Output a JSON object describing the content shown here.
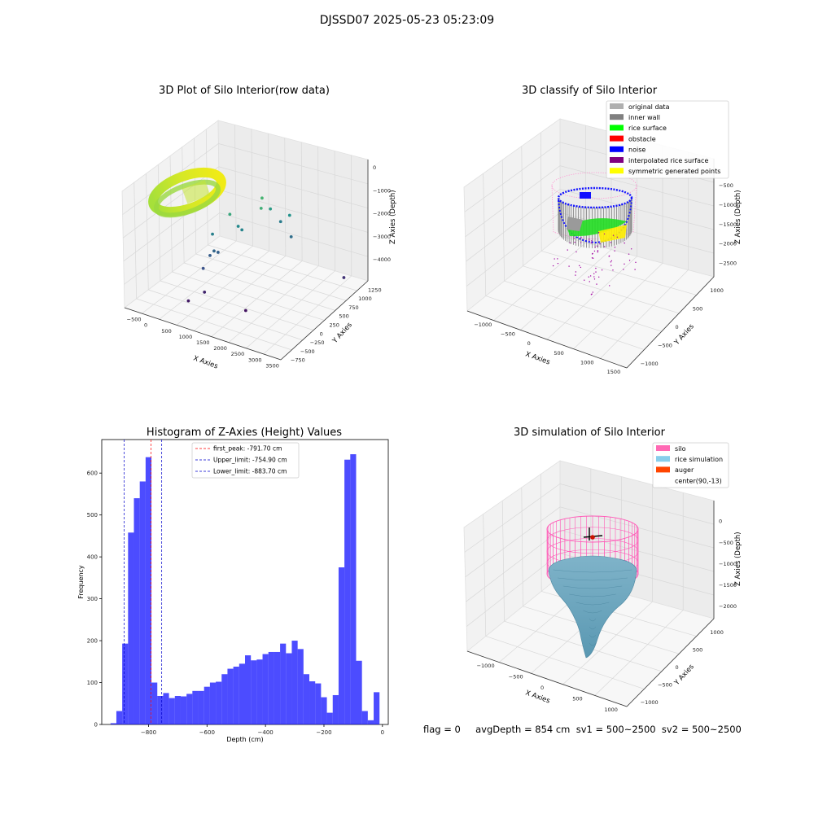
{
  "suptitle": "DJSSD07 2025-05-23 05:23:09",
  "footer": "flag = 0     avgDepth = 854 cm  sv1 = 500~2500  sv2 = 500~2500",
  "chart_data": [
    {
      "type": "scatter",
      "title": "3D Plot of Silo Interior(row data)",
      "xlabel": "X Axies",
      "ylabel": "Y Axies",
      "zlabel": "Z Axies (Depth)",
      "x_ticks": [
        "−500",
        "0",
        "500",
        "1000",
        "1500",
        "2000",
        "2500",
        "3000",
        "3500"
      ],
      "y_ticks": [
        "−750",
        "−500",
        "−250",
        "0",
        "250",
        "500",
        "750",
        "1000",
        "1250"
      ],
      "z_ticks": [
        "0",
        "−1000",
        "−2000",
        "−3000",
        "−4000"
      ],
      "xlim": [
        -600,
        3600
      ],
      "ylim": [
        -800,
        1400
      ],
      "zlim": [
        -4700,
        300
      ],
      "colormap": "viridis",
      "points": [
        {
          "x": 1350,
          "y": 700,
          "z": -1050
        },
        {
          "x": 1500,
          "y": 550,
          "z": -1200
        },
        {
          "x": 950,
          "y": 300,
          "z": -1400
        },
        {
          "x": 1400,
          "y": 850,
          "z": -1700
        },
        {
          "x": 1800,
          "y": 950,
          "z": -1900
        },
        {
          "x": 1000,
          "y": 450,
          "z": -2100
        },
        {
          "x": 1100,
          "y": 450,
          "z": -2200
        },
        {
          "x": 1500,
          "y": 1000,
          "z": -2400
        },
        {
          "x": 1900,
          "y": 900,
          "z": -2700
        },
        {
          "x": 600,
          "y": 200,
          "z": -2300
        },
        {
          "x": 700,
          "y": 150,
          "z": -2900
        },
        {
          "x": 750,
          "y": 200,
          "z": -3000
        },
        {
          "x": 650,
          "y": 100,
          "z": -3050
        },
        {
          "x": 700,
          "y": -100,
          "z": -3300
        },
        {
          "x": 3200,
          "y": 1000,
          "z": -3900
        },
        {
          "x": 850,
          "y": -200,
          "z": -4100
        },
        {
          "x": 650,
          "y": -400,
          "z": -4300
        },
        {
          "x": 1900,
          "y": -150,
          "z": -4400
        }
      ]
    },
    {
      "type": "scatter",
      "title": "3D classify of Silo Interior",
      "xlabel": "X Axies",
      "ylabel": "Y Axies",
      "zlabel": "Z Axies (Depth)",
      "x_ticks": [
        "−1000",
        "−500",
        "0",
        "500",
        "1000",
        "1500"
      ],
      "y_ticks": [
        "−1000",
        "−500",
        "0",
        "500",
        "1000"
      ],
      "z_ticks": [
        "−500",
        "−1000",
        "−1500",
        "−2000",
        "−2500"
      ],
      "legend_position": "top-right",
      "legend": [
        {
          "label": "original data",
          "color": "#b0b0b0"
        },
        {
          "label": "inner wall",
          "color": "#808080"
        },
        {
          "label": "rice surface",
          "color": "#00ff00"
        },
        {
          "label": "obstacle",
          "color": "#ff0000"
        },
        {
          "label": "noise",
          "color": "#0000ff"
        },
        {
          "label": "interpolated rice surface",
          "color": "#800080"
        },
        {
          "label": "symmetric generated points",
          "color": "#ffff00"
        }
      ]
    },
    {
      "type": "bar",
      "title": "Histogram of Z-Axies (Height) Values",
      "xlabel": "Depth (cm)",
      "ylabel": "Frequency",
      "bar_color": "#0000ff",
      "bin_width": 20,
      "xlim": [
        -960,
        20
      ],
      "ylim": [
        0,
        680
      ],
      "x_ticks": [
        -800,
        -600,
        -400,
        -200,
        0
      ],
      "x_tick_labels": [
        "−800",
        "−600",
        "−400",
        "−200",
        "0"
      ],
      "y_ticks": [
        0,
        100,
        200,
        300,
        400,
        500,
        600
      ],
      "bins": [
        {
          "x": -920,
          "value": 3
        },
        {
          "x": -900,
          "value": 32
        },
        {
          "x": -880,
          "value": 193
        },
        {
          "x": -860,
          "value": 458
        },
        {
          "x": -840,
          "value": 540
        },
        {
          "x": -820,
          "value": 580
        },
        {
          "x": -800,
          "value": 638
        },
        {
          "x": -780,
          "value": 100
        },
        {
          "x": -760,
          "value": 68
        },
        {
          "x": -740,
          "value": 75
        },
        {
          "x": -720,
          "value": 63
        },
        {
          "x": -700,
          "value": 68
        },
        {
          "x": -680,
          "value": 67
        },
        {
          "x": -660,
          "value": 73
        },
        {
          "x": -640,
          "value": 80
        },
        {
          "x": -620,
          "value": 80
        },
        {
          "x": -600,
          "value": 90
        },
        {
          "x": -580,
          "value": 100
        },
        {
          "x": -560,
          "value": 102
        },
        {
          "x": -540,
          "value": 120
        },
        {
          "x": -520,
          "value": 133
        },
        {
          "x": -500,
          "value": 138
        },
        {
          "x": -480,
          "value": 145
        },
        {
          "x": -460,
          "value": 165
        },
        {
          "x": -440,
          "value": 153
        },
        {
          "x": -420,
          "value": 155
        },
        {
          "x": -400,
          "value": 168
        },
        {
          "x": -380,
          "value": 173
        },
        {
          "x": -360,
          "value": 173
        },
        {
          "x": -340,
          "value": 193
        },
        {
          "x": -320,
          "value": 170
        },
        {
          "x": -300,
          "value": 200
        },
        {
          "x": -280,
          "value": 180
        },
        {
          "x": -260,
          "value": 120
        },
        {
          "x": -240,
          "value": 103
        },
        {
          "x": -220,
          "value": 98
        },
        {
          "x": -200,
          "value": 65
        },
        {
          "x": -180,
          "value": 28
        },
        {
          "x": -160,
          "value": 70
        },
        {
          "x": -140,
          "value": 375
        },
        {
          "x": -120,
          "value": 632
        },
        {
          "x": -100,
          "value": 645
        },
        {
          "x": -80,
          "value": 152
        },
        {
          "x": -60,
          "value": 32
        },
        {
          "x": -40,
          "value": 10
        },
        {
          "x": -20,
          "value": 77
        }
      ],
      "vlines": [
        {
          "label": "first_peak: -791.70 cm",
          "x": -791.7,
          "color": "#ff0000"
        },
        {
          "label": "Upper_limit: -754.90 cm",
          "x": -754.9,
          "color": "#0000cc"
        },
        {
          "label": "Lower_limit: -883.70 cm",
          "x": -883.7,
          "color": "#0000cc"
        }
      ],
      "legend_position": "top-center"
    },
    {
      "type": "scatter",
      "title": "3D simulation of Silo Interior",
      "xlabel": "X Axies",
      "ylabel": "Y Axies",
      "zlabel": "Z Axies (Depth)",
      "x_ticks": [
        "−1000",
        "−500",
        "0",
        "500",
        "1000"
      ],
      "y_ticks": [
        "−1000",
        "−500",
        "0",
        "500",
        "1000"
      ],
      "z_ticks": [
        "0",
        "−500",
        "−1000",
        "−1500",
        "−2000"
      ],
      "legend_position": "top-right",
      "legend": [
        {
          "label": "silo",
          "color": "#ff69b4"
        },
        {
          "label": "rice simulation",
          "color": "#87ceeb"
        },
        {
          "label": "auger",
          "color": "#ff4500"
        },
        {
          "label": "center(90,-13)",
          "color": ""
        }
      ]
    }
  ]
}
